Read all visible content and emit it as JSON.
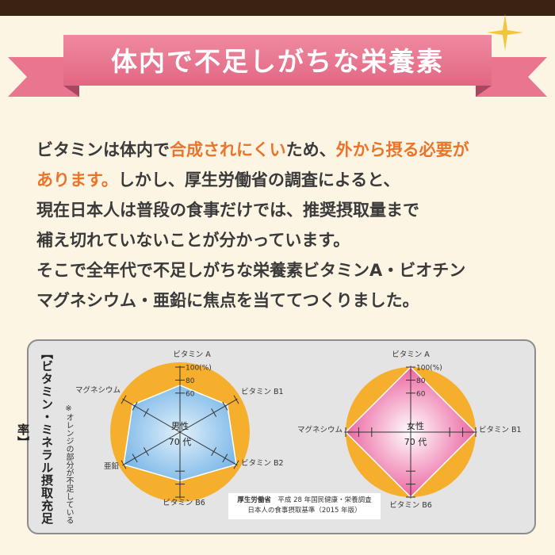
{
  "banner": {
    "title": "体内で不足しがちな栄養素"
  },
  "body": {
    "lines": [
      [
        {
          "t": "ビタミンは体内で"
        },
        {
          "t": "合成されにくい",
          "hl": true
        },
        {
          "t": "ため、"
        },
        {
          "t": "外から摂る必要が",
          "hl": true
        }
      ],
      [
        {
          "t": "あります。",
          "hl": true
        },
        {
          "t": "しかし、厚生労働省の調査によると、"
        }
      ],
      [
        {
          "t": "現在日本人は普段の食事だけでは、推奨摂取量まで"
        }
      ],
      [
        {
          "t": "補え切れていないことが分かっています。"
        }
      ],
      [
        {
          "t": "そこで全年代で不足しがちな栄養素ビタミンA・ビオチン"
        }
      ],
      [
        {
          "t": "マグネシウム・亜鉛に焦点を当ててつくりました。"
        }
      ]
    ]
  },
  "panel": {
    "title": "【ビタミン・ミネラル摂取充足率】",
    "note": "※オレンジの部分が不足している",
    "source": {
      "org": "厚生労働省",
      "line1": "平成 28 年国民健康・栄養調査",
      "line2": "日本人の食事摂取基準（2015 年版）"
    }
  },
  "chart_data": [
    {
      "type": "radar",
      "center_label": [
        "男性",
        "70 代"
      ],
      "axes": [
        "ビタミン A",
        "ビタミン B1",
        "ビタミン B2",
        "ビタミン B6",
        "亜鉛",
        "マグネシウム"
      ],
      "scale_labels": [
        "100(%)",
        "80",
        "60"
      ],
      "ticks": [
        60,
        80,
        100
      ],
      "range": [
        0,
        100
      ],
      "values": [
        72,
        84,
        100,
        75,
        100,
        84
      ],
      "colors": {
        "deficit": "#f6ae2d",
        "fill": "#74b3e6",
        "fill_light": "#e2f1fb"
      }
    },
    {
      "type": "radar",
      "center_label": [
        "女性",
        "70 代"
      ],
      "axes": [
        "ビタミン A",
        "ビタミン B1",
        "ビタミン B6",
        "マグネシウム"
      ],
      "scale_labels": [
        "100(%)",
        "80",
        "60"
      ],
      "ticks": [
        60,
        80,
        100
      ],
      "range": [
        0,
        100
      ],
      "values": [
        100,
        100,
        100,
        100
      ],
      "colors": {
        "deficit": "#f6ae2d",
        "fill": "#e8468d",
        "fill_light": "#ffffff"
      }
    }
  ],
  "colors": {
    "ribbon": "#e9758f",
    "ribbon_dark": "#b9506a",
    "accent": "#e9742a"
  }
}
